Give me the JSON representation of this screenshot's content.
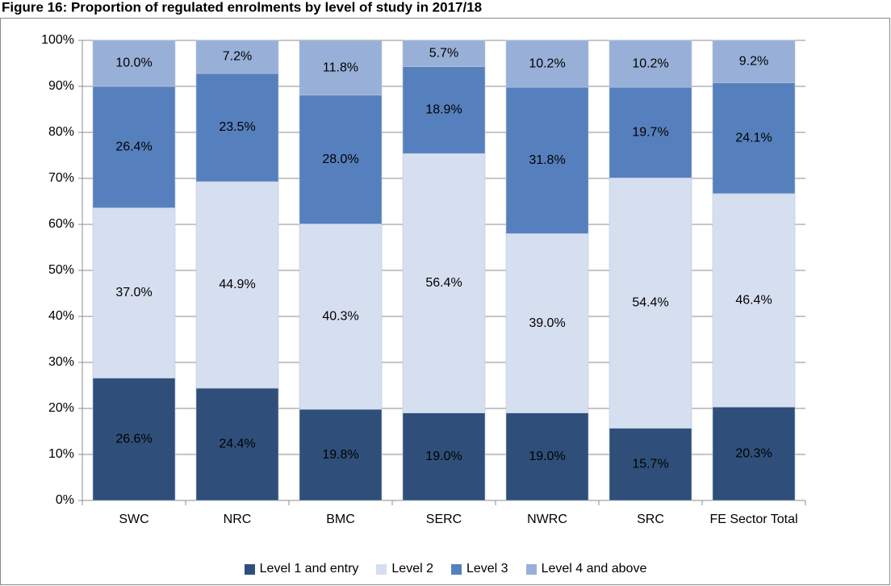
{
  "chart_data": {
    "type": "stacked_bar",
    "title": "Figure 16: Proportion of regulated enrolments by level of study in 2017/18",
    "categories": [
      "SWC",
      "NRC",
      "BMC",
      "SERC",
      "NWRC",
      "SRC",
      "FE Sector Total"
    ],
    "series": [
      {
        "name": "Level 1 and entry",
        "color": "#2f4f7a",
        "values": [
          26.6,
          24.4,
          19.8,
          19.0,
          19.0,
          15.7,
          20.3
        ],
        "value_labels": [
          "26.6%",
          "24.4%",
          "19.8%",
          "19.0%",
          "19.0%",
          "15.7%",
          "20.3%"
        ]
      },
      {
        "name": "Level 2",
        "color": "#d6dff0",
        "values": [
          37.0,
          44.9,
          40.3,
          56.4,
          39.0,
          54.4,
          46.4
        ],
        "value_labels": [
          "37.0%",
          "44.9%",
          "40.3%",
          "56.4%",
          "39.0%",
          "54.4%",
          "46.4%"
        ]
      },
      {
        "name": "Level 3",
        "color": "#5680bd",
        "values": [
          26.4,
          23.5,
          28.0,
          18.9,
          31.8,
          19.7,
          24.1
        ],
        "value_labels": [
          "26.4%",
          "23.5%",
          "28.0%",
          "18.9%",
          "31.8%",
          "19.7%",
          "24.1%"
        ]
      },
      {
        "name": "Level 4 and above",
        "color": "#98b0d8",
        "values": [
          10.0,
          7.2,
          11.8,
          5.7,
          10.2,
          10.2,
          9.2
        ],
        "value_labels": [
          "10.0%",
          "7.2%",
          "11.8%",
          "5.7%",
          "10.2%",
          "10.2%",
          "9.2%"
        ]
      }
    ],
    "ylim": [
      0,
      100
    ],
    "yticks": [
      {
        "value": 0,
        "label": "0%"
      },
      {
        "value": 10,
        "label": "10%"
      },
      {
        "value": 20,
        "label": "20%"
      },
      {
        "value": 30,
        "label": "30%"
      },
      {
        "value": 40,
        "label": "40%"
      },
      {
        "value": 50,
        "label": "50%"
      },
      {
        "value": 60,
        "label": "60%"
      },
      {
        "value": 70,
        "label": "70%"
      },
      {
        "value": 80,
        "label": "80%"
      },
      {
        "value": 90,
        "label": "90%"
      },
      {
        "value": 100,
        "label": "100%"
      }
    ],
    "grid": true,
    "legend": "bottom"
  }
}
